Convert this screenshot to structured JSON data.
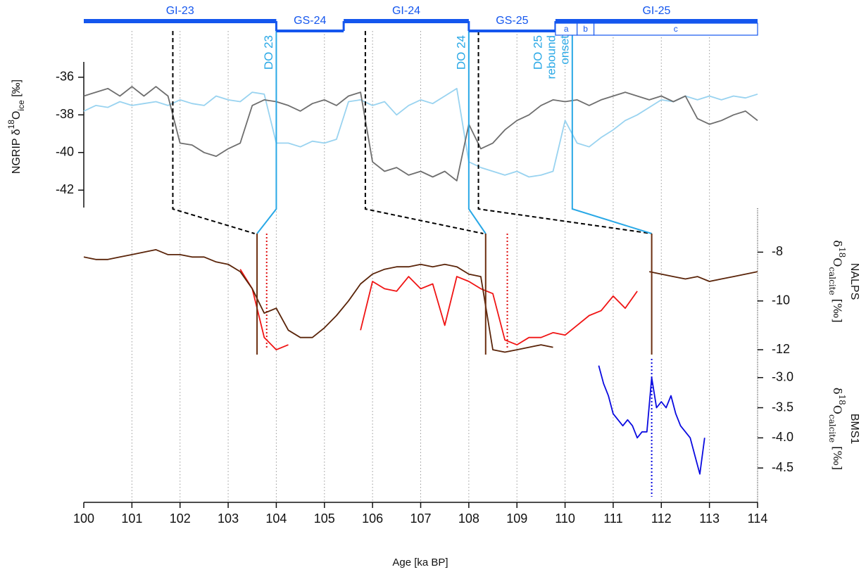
{
  "chart_data": {
    "type": "line",
    "xlabel": "Age [ka BP]",
    "xlim": [
      100,
      114
    ],
    "xticks": [
      100,
      101,
      102,
      103,
      104,
      105,
      106,
      107,
      108,
      109,
      110,
      111,
      112,
      113,
      114
    ],
    "grid": true,
    "period_color": "#1456ee",
    "periods": [
      {
        "label": "GI-23",
        "start": 100,
        "end": 104,
        "phase": "interstadial"
      },
      {
        "label": "GS-24",
        "start": 104,
        "end": 105.4,
        "phase": "stadial"
      },
      {
        "label": "GI-24",
        "start": 105.4,
        "end": 108,
        "phase": "interstadial"
      },
      {
        "label": "GS-25",
        "start": 108,
        "end": 109.8,
        "phase": "stadial"
      },
      {
        "label": "GI-25",
        "start": 109.8,
        "end": 114,
        "phase": "interstadial"
      }
    ],
    "subperiods": [
      {
        "label": "a",
        "start": 109.8,
        "end": 110.25
      },
      {
        "label": "b",
        "start": 110.25,
        "end": 110.6
      },
      {
        "label": "c",
        "start": 110.6,
        "end": 114
      }
    ],
    "ties": [
      {
        "ngrip": 101.85,
        "nalps": 103.55,
        "color": "#000000",
        "style": "dashed"
      },
      {
        "ngrip": 104.0,
        "nalps": 103.6,
        "color": "#29a8e6",
        "style": "solid",
        "marker_color": "#6b2e10",
        "annotation": [
          "DO 23"
        ]
      },
      {
        "ngrip": 105.85,
        "nalps": 108.3,
        "color": "#000000",
        "style": "dashed"
      },
      {
        "ngrip": 108.0,
        "nalps": 108.35,
        "color": "#29a8e6",
        "style": "solid",
        "marker_color": "#6b2e10",
        "annotation": [
          "DO 24"
        ]
      },
      {
        "ngrip": 108.2,
        "nalps": 111.8,
        "color": "#000000",
        "style": "dashed"
      },
      {
        "ngrip": 110.15,
        "nalps": 111.8,
        "color": "#29a8e6",
        "style": "solid",
        "marker_color": "#6b2e10",
        "annotation": [
          "DO 25",
          "rebound",
          "onset"
        ]
      }
    ],
    "panels": [
      {
        "side": "left",
        "ylabel": [
          [
            {
              "text": "NGRIP δ"
            },
            {
              "text": "18",
              "shift": "sup"
            },
            {
              "text": "O"
            },
            {
              "text": "ice",
              "shift": "sub"
            },
            {
              "text": " [‰]"
            }
          ]
        ],
        "ylim": [
          -43,
          -35
        ],
        "yticks": [
          -42,
          -40,
          -38,
          -36
        ],
        "x": [
          100,
          100.25,
          100.5,
          100.75,
          101,
          101.25,
          101.5,
          101.75,
          102,
          102.25,
          102.5,
          102.75,
          103,
          103.25,
          103.5,
          103.75,
          104,
          104.25,
          104.5,
          104.75,
          105,
          105.25,
          105.5,
          105.75,
          106,
          106.25,
          106.5,
          106.75,
          107,
          107.25,
          107.5,
          107.75,
          108,
          108.25,
          108.5,
          108.75,
          109,
          109.25,
          109.5,
          109.75,
          110,
          110.25,
          110.5,
          110.75,
          111,
          111.25,
          111.5,
          111.75,
          112,
          112.25,
          112.5,
          112.75,
          113,
          113.25,
          113.5,
          113.75,
          114
        ],
        "series": [
          {
            "color": "#99d3f0",
            "values": [
              -37.8,
              -37.5,
              -37.6,
              -37.3,
              -37.5,
              -37.4,
              -37.3,
              -37.5,
              -37.2,
              -37.4,
              -37.5,
              -37,
              -37.2,
              -37.3,
              -36.8,
              -36.9,
              -39.5,
              -39.5,
              -39.7,
              -39.4,
              -39.5,
              -39.3,
              -37.3,
              -37.2,
              -37.5,
              -37.3,
              -38,
              -37.5,
              -37.2,
              -37.4,
              -37,
              -36.6,
              -40.5,
              -40.8,
              -41,
              -41.2,
              -41,
              -41.3,
              -41.2,
              -41,
              -38.3,
              -39.5,
              -39.7,
              -39.2,
              -38.8,
              -38.3,
              -38,
              -37.6,
              -37.2,
              -37.3,
              -37,
              -37.2,
              -37,
              -37.2,
              -37,
              -37.1,
              -36.9
            ]
          },
          {
            "color": "#6e6e6e",
            "values": [
              -37,
              -36.8,
              -36.6,
              -37,
              -36.5,
              -37,
              -36.5,
              -37,
              -39.5,
              -39.6,
              -40,
              -40.2,
              -39.8,
              -39.5,
              -37.5,
              -37.2,
              -37.3,
              -37.5,
              -37.8,
              -37.4,
              -37.2,
              -37.5,
              -37,
              -36.8,
              -40.5,
              -41,
              -40.8,
              -41.2,
              -41,
              -41.3,
              -41,
              -41.5,
              -38.5,
              -39.8,
              -39.5,
              -38.8,
              -38.3,
              -38,
              -37.5,
              -37.2,
              -37.3,
              -37.2,
              -37.5,
              -37.2,
              -37,
              -36.8,
              -37,
              -37.2,
              -37,
              -37.3,
              -37,
              -38.2,
              -38.5,
              -38.3,
              -38,
              -37.8,
              -38.3
            ]
          }
        ],
        "markers": []
      },
      {
        "side": "right",
        "ylabel": [
          [
            {
              "text": "NALPS"
            }
          ],
          [
            {
              "text": "δ"
            },
            {
              "text": "18",
              "shift": "sup"
            },
            {
              "text": "O"
            },
            {
              "text": "calcite",
              "shift": "sub"
            },
            {
              "text": " [‰]"
            }
          ]
        ],
        "ylim": [
          -12.2,
          -6.2
        ],
        "yticks": [
          -12,
          -10,
          -8
        ],
        "x": [
          100,
          100.25,
          100.5,
          100.75,
          101,
          101.25,
          101.5,
          101.75,
          102,
          102.25,
          102.5,
          102.75,
          103,
          103.25,
          103.5,
          103.75,
          104,
          104.25,
          104.5,
          104.75,
          105,
          105.25,
          105.5,
          105.75,
          106,
          106.25,
          106.5,
          106.75,
          107,
          107.25,
          107.5,
          107.75,
          108,
          108.25,
          108.5,
          108.75,
          109,
          109.25,
          109.5,
          109.75,
          110,
          110.25,
          110.5,
          110.75,
          111,
          111.25,
          111.5,
          111.75,
          112,
          112.25,
          112.5,
          112.75,
          113,
          113.25,
          113.5,
          113.75,
          114
        ],
        "series": [
          {
            "color": "#f01414",
            "values": [
              null,
              null,
              null,
              null,
              null,
              null,
              null,
              null,
              null,
              null,
              null,
              null,
              null,
              -8.7,
              -9.5,
              -11.5,
              -12,
              -11.8,
              null,
              null,
              null,
              null,
              null,
              -11.2,
              -9.2,
              -9.5,
              -9.6,
              -9,
              -9.5,
              -9.3,
              -11,
              -9,
              -9.2,
              -9.5,
              -9.7,
              -11.6,
              -11.8,
              -11.5,
              -11.5,
              -11.3,
              -11.4,
              -11,
              -10.6,
              -10.4,
              -9.8,
              -10.3,
              -9.6,
              null,
              null,
              null,
              null,
              null,
              null,
              null,
              null,
              null,
              null
            ]
          },
          {
            "color": "#5a2409",
            "values": [
              -8.2,
              -8.3,
              -8.3,
              -8.2,
              -8.1,
              -8.0,
              -7.9,
              -8.1,
              -8.1,
              -8.2,
              -8.2,
              -8.4,
              -8.5,
              -8.8,
              -9.5,
              -10.5,
              -10.3,
              -11.2,
              -11.5,
              -11.5,
              -11.1,
              -10.6,
              -10,
              -9.3,
              -8.9,
              -8.7,
              -8.6,
              -8.6,
              -8.5,
              -8.6,
              -8.5,
              -8.6,
              -8.9,
              -9.0,
              -12,
              -12.1,
              -12,
              -11.9,
              -11.8,
              -11.9,
              null,
              null,
              null,
              null,
              null,
              null,
              null,
              -8.8,
              -8.9,
              -9,
              -9.1,
              -9,
              -9.2,
              -9.1,
              -9.0,
              -8.9,
              -8.8
            ]
          }
        ],
        "markers": [
          {
            "x": 103.8,
            "color": "#e01010"
          },
          {
            "x": 108.8,
            "color": "#e01010"
          }
        ]
      },
      {
        "side": "right",
        "ylabel": [
          [
            {
              "text": "BMS1"
            }
          ],
          [
            {
              "text": "δ"
            },
            {
              "text": "18",
              "shift": "sup"
            },
            {
              "text": "O"
            },
            {
              "text": "calcite",
              "shift": "sub"
            },
            {
              "text": " [‰]"
            }
          ]
        ],
        "ylim": [
          -5.07,
          -2.63
        ],
        "yticks": [
          {
            "value": -4.5,
            "label": "-4.5"
          },
          {
            "value": -4,
            "label": "-4.0"
          },
          {
            "value": -3.5,
            "label": "-3.5"
          },
          {
            "value": -3,
            "label": "-3.0"
          }
        ],
        "x": [
          110.7,
          110.8,
          110.9,
          111.0,
          111.1,
          111.2,
          111.3,
          111.4,
          111.5,
          111.6,
          111.7,
          111.8,
          111.9,
          112.0,
          112.1,
          112.2,
          112.3,
          112.4,
          112.5,
          112.6,
          112.7,
          112.8,
          112.9
        ],
        "series": [
          {
            "color": "#0a0ae0",
            "values": [
              -2.8,
              -3.1,
              -3.3,
              -3.6,
              -3.7,
              -3.8,
              -3.7,
              -3.8,
              -4.0,
              -3.9,
              -3.9,
              -3.0,
              -3.5,
              -3.4,
              -3.5,
              -3.3,
              -3.6,
              -3.8,
              -3.9,
              -4.0,
              -4.3,
              -4.6,
              -4.0
            ]
          }
        ],
        "markers": [
          {
            "x": 111.8,
            "color": "#0a0ae0"
          }
        ]
      }
    ]
  }
}
